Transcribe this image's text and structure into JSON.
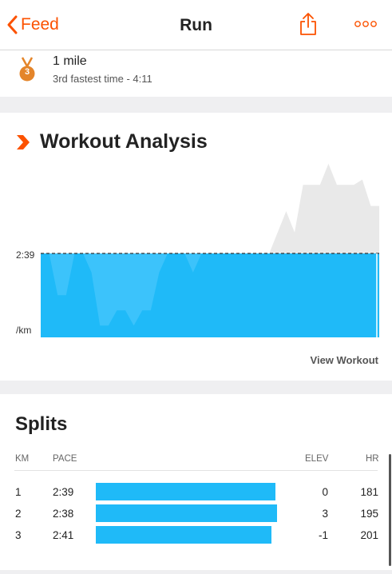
{
  "nav": {
    "back_label": "Feed",
    "title": "Run",
    "share_icon": "share-icon",
    "more_icon": "more-icon",
    "accent": "#fc5200"
  },
  "achievement": {
    "rank": "3",
    "name": "1 mile",
    "detail": "3rd fastest time - 4:11",
    "medal_color": "#e4852a"
  },
  "analysis": {
    "title": "Workout Analysis",
    "view_label": "View Workout",
    "pace_color": "#1fbaf8",
    "elevation_color": "#e9e9e9"
  },
  "chart_data": {
    "type": "area",
    "title": "Workout Analysis",
    "ylabel": "/km",
    "yticks": [
      "2:39",
      "/km"
    ],
    "reference_line": "2:39",
    "series": [
      {
        "values": [
          2.65,
          2.65,
          3.2,
          3.2,
          2.65,
          2.65,
          2.9,
          3.6,
          3.6,
          3.4,
          3.4,
          3.6,
          3.4,
          3.4,
          2.9,
          2.65,
          2.65,
          2.65,
          2.9,
          2.65,
          2.65,
          2.65,
          2.65,
          2.65,
          2.65,
          2.65,
          2.65,
          2.65,
          2.65,
          2.65,
          2.65,
          2.65,
          2.65,
          2.65,
          2.65,
          2.65,
          2.65,
          2.65,
          2.65,
          2.65,
          2.65
        ]
      },
      {
        "values": [
          0,
          0,
          0,
          0,
          0,
          0,
          0,
          0,
          0,
          0,
          0,
          0,
          0,
          0,
          0,
          0,
          0,
          0,
          0,
          0,
          0,
          0,
          0,
          0,
          0,
          0,
          0,
          0,
          0.8,
          1.6,
          0.8,
          2.6,
          2.6,
          2.6,
          3.4,
          2.6,
          2.6,
          2.6,
          2.8,
          1.8,
          1.8
        ]
      }
    ]
  },
  "splits": {
    "title": "Splits",
    "columns": {
      "km": "KM",
      "pace": "PACE",
      "elev": "ELEV",
      "hr": "HR"
    },
    "bar_color": "#1fbaf8",
    "rows": [
      {
        "km": "1",
        "pace": "2:39",
        "pace_sec": 159,
        "elev": "0",
        "hr": "181"
      },
      {
        "km": "2",
        "pace": "2:38",
        "pace_sec": 158,
        "elev": "3",
        "hr": "195"
      },
      {
        "km": "3",
        "pace": "2:41",
        "pace_sec": 161,
        "elev": "-1",
        "hr": "201"
      }
    ]
  }
}
